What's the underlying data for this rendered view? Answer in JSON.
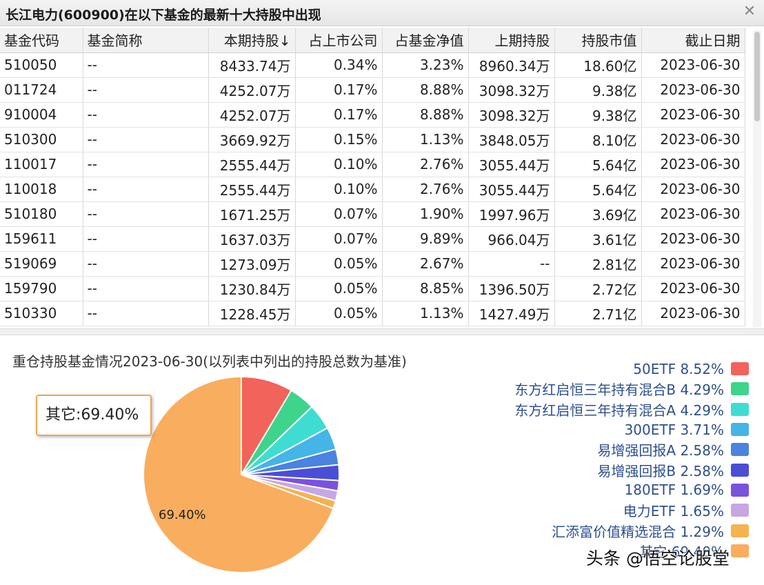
{
  "window": {
    "title": "长江电力(600900)在以下基金的最新十大持股中出现"
  },
  "table": {
    "columns": [
      "基金代码",
      "基金简称",
      "本期持股↓",
      "占上市公司",
      "占基金净值",
      "上期持股",
      "持股市值",
      "截止日期"
    ],
    "rows": [
      [
        "510050",
        "--",
        "8433.74万",
        "0.34%",
        "3.23%",
        "8960.34万",
        "18.60亿",
        "2023-06-30"
      ],
      [
        "011724",
        "--",
        "4252.07万",
        "0.17%",
        "8.88%",
        "3098.32万",
        "9.38亿",
        "2023-06-30"
      ],
      [
        "910004",
        "--",
        "4252.07万",
        "0.17%",
        "8.88%",
        "3098.32万",
        "9.38亿",
        "2023-06-30"
      ],
      [
        "510300",
        "--",
        "3669.92万",
        "0.15%",
        "1.13%",
        "3848.05万",
        "8.10亿",
        "2023-06-30"
      ],
      [
        "110017",
        "--",
        "2555.44万",
        "0.10%",
        "2.76%",
        "3055.44万",
        "5.64亿",
        "2023-06-30"
      ],
      [
        "110018",
        "--",
        "2555.44万",
        "0.10%",
        "2.76%",
        "3055.44万",
        "5.64亿",
        "2023-06-30"
      ],
      [
        "510180",
        "--",
        "1671.25万",
        "0.07%",
        "1.90%",
        "1997.96万",
        "3.69亿",
        "2023-06-30"
      ],
      [
        "159611",
        "--",
        "1637.03万",
        "0.07%",
        "9.89%",
        "966.04万",
        "3.61亿",
        "2023-06-30"
      ],
      [
        "519069",
        "--",
        "1273.09万",
        "0.05%",
        "2.67%",
        "--",
        "2.81亿",
        "2023-06-30"
      ],
      [
        "159790",
        "--",
        "1230.84万",
        "0.05%",
        "8.85%",
        "1396.50万",
        "2.72亿",
        "2023-06-30"
      ],
      [
        "510330",
        "--",
        "1228.45万",
        "0.05%",
        "1.13%",
        "1427.49万",
        "2.71亿",
        "2023-06-30"
      ]
    ]
  },
  "chart_data": {
    "type": "pie",
    "title": "重仓持股基金情况2023-06-30(以列表中列出的持股总数为基准)",
    "slices": [
      {
        "label": "50ETF 8.52%",
        "value": 8.52,
        "color": "#f2635b"
      },
      {
        "label": "东方红启恒三年持有混合B 4.29%",
        "value": 4.29,
        "color": "#3ed48c"
      },
      {
        "label": "东方红启恒三年持有混合A 4.29%",
        "value": 4.29,
        "color": "#3fdcd2"
      },
      {
        "label": "300ETF 3.71%",
        "value": 3.71,
        "color": "#45b4e6"
      },
      {
        "label": "易增强回报A 2.58%",
        "value": 2.58,
        "color": "#4a83e0"
      },
      {
        "label": "易增强回报B 2.58%",
        "value": 2.58,
        "color": "#4a4ed6"
      },
      {
        "label": "180ETF 1.69%",
        "value": 1.69,
        "color": "#7a52de"
      },
      {
        "label": "电力ETF 1.65%",
        "value": 1.65,
        "color": "#c6a7e4"
      },
      {
        "label": "汇添富价值精选混合 1.29%",
        "value": 1.29,
        "color": "#f6b24f"
      },
      {
        "label": "其它 69.40%",
        "value": 69.4,
        "color": "#f9ad5e"
      }
    ],
    "callout_label": "其它:69.40%",
    "inside_label": "69.40%",
    "legend_position": "right"
  },
  "watermark": "头条 @悟空论股堂"
}
